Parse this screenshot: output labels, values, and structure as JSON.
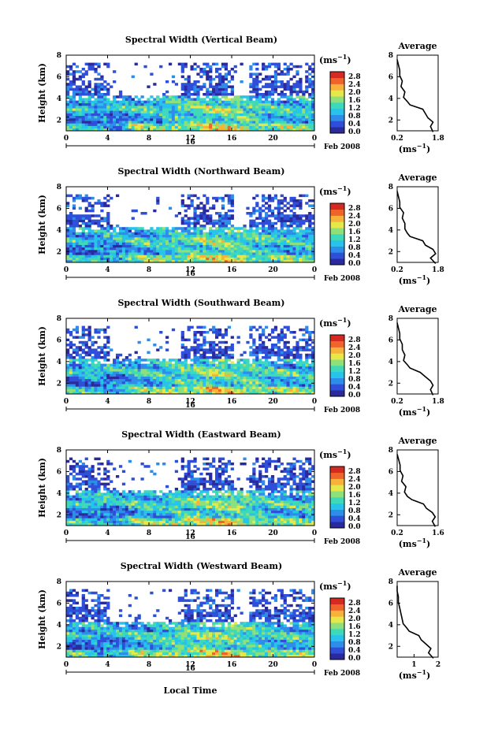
{
  "figure": {
    "xlabel": "Local Time",
    "date_label": "Feb 2008",
    "day_label": "16",
    "colorbar_unit": "(ms",
    "colorbar_unit_exp": "−1",
    "colorbar_unit_close": ")",
    "avg_title": "Average",
    "avg_xlabel": "(ms",
    "avg_xlabel_exp": "−1",
    "avg_xlabel_close": ")"
  },
  "colorscale": {
    "ticks": [
      "2.8",
      "2.4",
      "2.0",
      "1.6",
      "1.2",
      "0.8",
      "0.4",
      "0.0"
    ],
    "colors": [
      "#2a2a9c",
      "#2f4fd8",
      "#2e8de8",
      "#27c3ea",
      "#3ed9b8",
      "#8de07a",
      "#e6e84a",
      "#f6b23a",
      "#f0642a",
      "#d42a22"
    ]
  },
  "chart_data": [
    {
      "type": "heatmap",
      "title": "Spectral Width (Vertical Beam)",
      "ylabel": "Height (km)",
      "xlim": [
        0,
        24
      ],
      "ylim": [
        1,
        8
      ],
      "x_ticks": [
        "0",
        "4",
        "8",
        "12",
        "16",
        "20",
        "0"
      ],
      "y_ticks": [
        "2",
        "4",
        "6",
        "8"
      ],
      "avg_profile": {
        "title": "Average",
        "xlabel": "(ms−1)",
        "x_ticks": [
          "0.2",
          "1.8"
        ],
        "y_ticks": [
          "2",
          "4",
          "6",
          "8"
        ],
        "xlim": [
          0.2,
          1.8
        ],
        "height_km": [
          0.9,
          1.4,
          1.8,
          2.2,
          2.6,
          3.0,
          3.4,
          3.7,
          4.1,
          4.6,
          5.1,
          5.6,
          6.1,
          6.6,
          7.1,
          7.6
        ],
        "width_ms": [
          1.6,
          1.5,
          1.6,
          1.4,
          1.3,
          1.2,
          0.7,
          0.6,
          0.45,
          0.5,
          0.35,
          0.4,
          0.3,
          0.3,
          0.25,
          0.2
        ]
      }
    },
    {
      "type": "heatmap",
      "title": "Spectral Width (Northward Beam)",
      "ylabel": "Height (km)",
      "xlim": [
        0,
        24
      ],
      "ylim": [
        1,
        8
      ],
      "x_ticks": [
        "0",
        "4",
        "8",
        "12",
        "16",
        "20",
        "0"
      ],
      "y_ticks": [
        "2",
        "4",
        "6",
        "8"
      ],
      "avg_profile": {
        "title": "Average",
        "xlabel": "(ms−1)",
        "x_ticks": [
          "0.2",
          "1.8"
        ],
        "y_ticks": [
          "2",
          "4",
          "6",
          "8"
        ],
        "xlim": [
          0.2,
          1.8
        ],
        "height_km": [
          0.9,
          1.4,
          1.8,
          2.2,
          2.6,
          3.0,
          3.4,
          3.7,
          4.1,
          4.6,
          5.1,
          5.6,
          6.1,
          6.6,
          7.1,
          7.6
        ],
        "width_ms": [
          1.7,
          1.5,
          1.7,
          1.6,
          1.3,
          1.2,
          0.7,
          0.6,
          0.5,
          0.5,
          0.4,
          0.45,
          0.3,
          0.3,
          0.25,
          0.2
        ]
      }
    },
    {
      "type": "heatmap",
      "title": "Spectral Width (Southward Beam)",
      "ylabel": "Height (km)",
      "xlim": [
        0,
        24
      ],
      "ylim": [
        1,
        8
      ],
      "x_ticks": [
        "0",
        "4",
        "8",
        "12",
        "16",
        "20",
        "0"
      ],
      "y_ticks": [
        "2",
        "4",
        "6",
        "8"
      ],
      "avg_profile": {
        "title": "Average",
        "xlabel": "(ms−1)",
        "x_ticks": [
          "0.2",
          "1.8"
        ],
        "y_ticks": [
          "2",
          "4",
          "6",
          "8"
        ],
        "xlim": [
          0.2,
          1.8
        ],
        "height_km": [
          0.9,
          1.4,
          1.8,
          2.2,
          2.6,
          3.0,
          3.4,
          3.7,
          4.1,
          4.6,
          5.1,
          5.6,
          6.1,
          6.6,
          7.1,
          7.6
        ],
        "width_ms": [
          1.6,
          1.5,
          1.6,
          1.5,
          1.3,
          1.1,
          0.7,
          0.6,
          0.45,
          0.5,
          0.4,
          0.4,
          0.3,
          0.3,
          0.25,
          0.2
        ]
      }
    },
    {
      "type": "heatmap",
      "title": "Spectral Width (Eastward Beam)",
      "ylabel": "Height (km)",
      "xlim": [
        0,
        24
      ],
      "ylim": [
        1,
        8
      ],
      "x_ticks": [
        "0",
        "4",
        "8",
        "12",
        "16",
        "20",
        "0"
      ],
      "y_ticks": [
        "2",
        "4",
        "6",
        "8"
      ],
      "avg_profile": {
        "title": "Average",
        "xlabel": "(ms−1)",
        "x_ticks": [
          "0.2",
          "1.6"
        ],
        "y_ticks": [
          "2",
          "4",
          "6",
          "8"
        ],
        "xlim": [
          0.2,
          1.6
        ],
        "height_km": [
          0.9,
          1.4,
          1.8,
          2.2,
          2.6,
          3.0,
          3.4,
          3.7,
          4.1,
          4.6,
          5.1,
          5.6,
          6.1,
          6.6,
          7.1,
          7.6
        ],
        "width_ms": [
          1.5,
          1.4,
          1.5,
          1.4,
          1.2,
          1.1,
          0.7,
          0.55,
          0.45,
          0.5,
          0.35,
          0.4,
          0.3,
          0.3,
          0.25,
          0.2
        ]
      }
    },
    {
      "type": "heatmap",
      "title": "Spectral Width (Westward Beam)",
      "ylabel": "Height (km)",
      "xlim": [
        0,
        24
      ],
      "ylim": [
        1,
        8
      ],
      "x_ticks": [
        "0",
        "4",
        "8",
        "12",
        "16",
        "20",
        "0"
      ],
      "y_ticks": [
        "2",
        "4",
        "6",
        "8"
      ],
      "avg_profile": {
        "title": "Average",
        "xlabel": "(ms−1)",
        "x_ticks": [
          "1",
          "2"
        ],
        "y_ticks": [
          "2",
          "4",
          "6",
          "8"
        ],
        "xlim": [
          0.3,
          2.0
        ],
        "height_km": [
          0.9,
          1.4,
          1.8,
          2.2,
          2.6,
          3.0,
          3.4,
          3.7,
          4.1,
          4.6,
          5.1,
          5.6,
          6.1,
          6.6,
          7.1,
          7.6
        ],
        "width_ms": [
          1.8,
          1.6,
          1.7,
          1.5,
          1.3,
          1.2,
          0.8,
          0.7,
          0.55,
          0.5,
          0.45,
          0.4,
          0.35,
          0.35,
          0.3,
          0.3
        ]
      }
    }
  ]
}
